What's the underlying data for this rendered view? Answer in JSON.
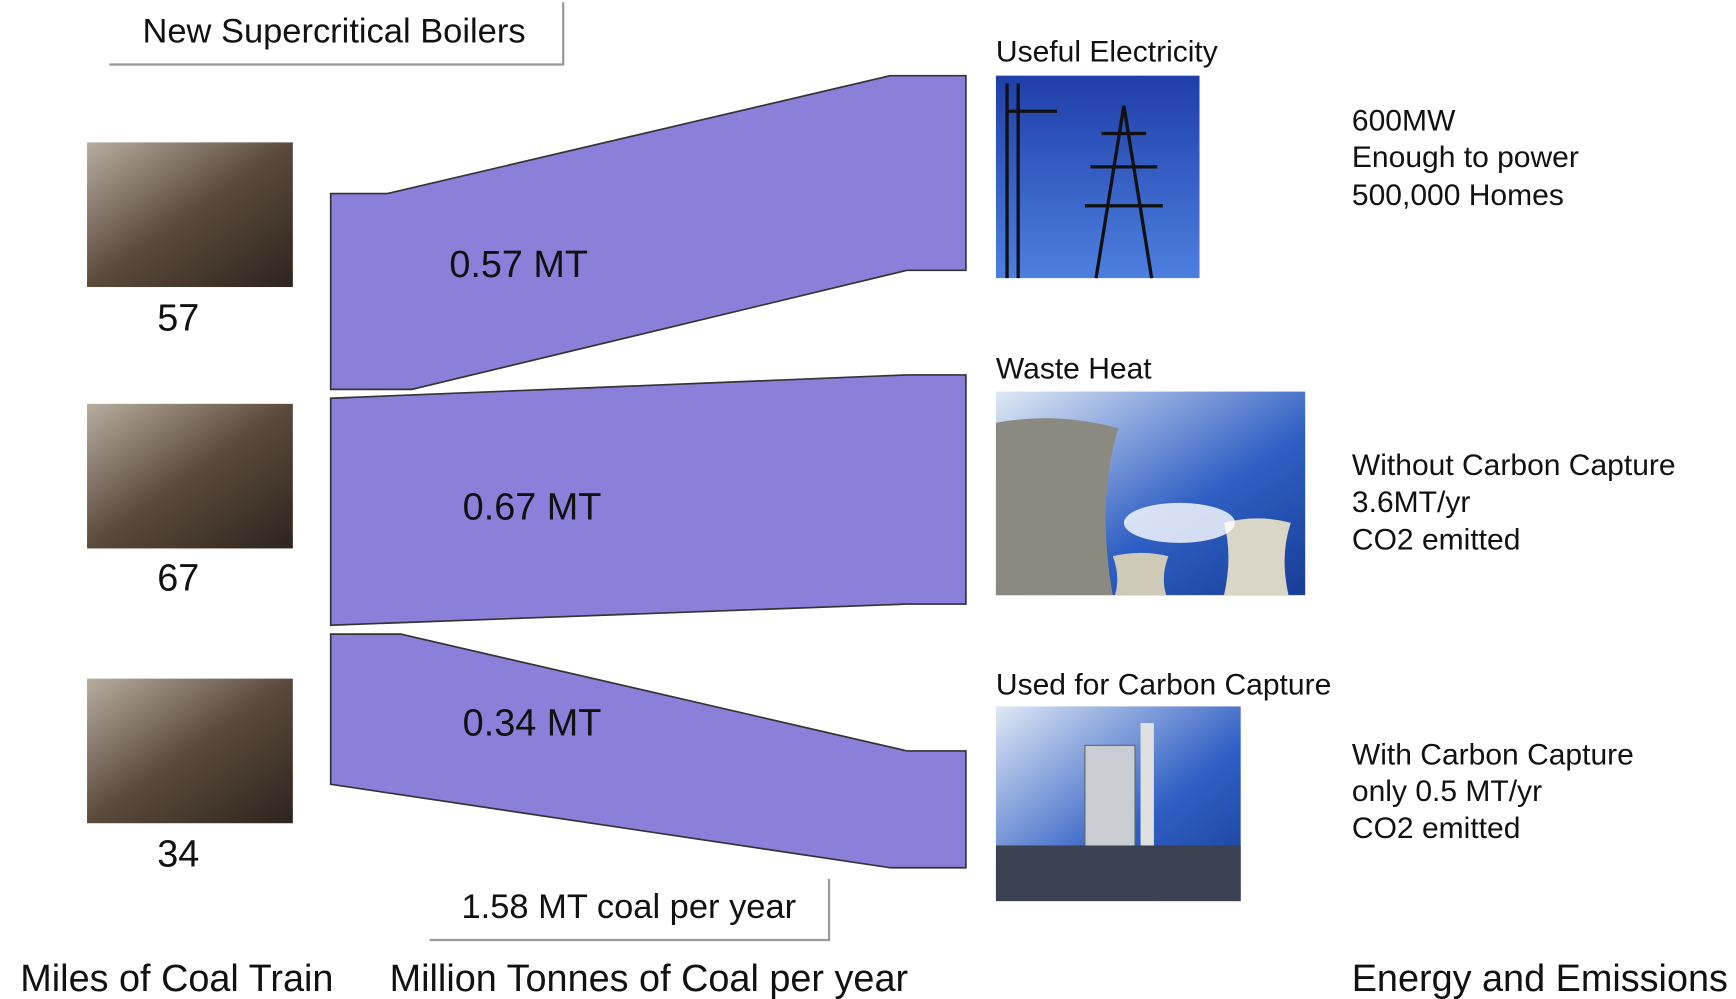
{
  "title": "New Supercritical Boilers",
  "trains": [
    {
      "label": "57"
    },
    {
      "label": "67"
    },
    {
      "label": "34"
    }
  ],
  "flows": [
    {
      "label": "0.57 MT"
    },
    {
      "label": "0.67 MT"
    },
    {
      "label": "0.34 MT"
    }
  ],
  "outputs": [
    {
      "heading": "Useful Electricity",
      "notes": [
        "600MW",
        "Enough to power",
        "500,000 Homes"
      ]
    },
    {
      "heading": "Waste Heat",
      "notes": [
        "Without Carbon Capture",
        "3.6MT/yr",
        "CO2 emitted"
      ]
    },
    {
      "heading": "Used for Carbon Capture",
      "notes": [
        "With Carbon Capture",
        "only 0.5 MT/yr",
        "CO2 emitted"
      ]
    }
  ],
  "total": "1.58 MT coal per year",
  "column_labels": [
    "Miles of Coal Train",
    "Million Tonnes of Coal per year",
    "Energy and Emissions"
  ]
}
